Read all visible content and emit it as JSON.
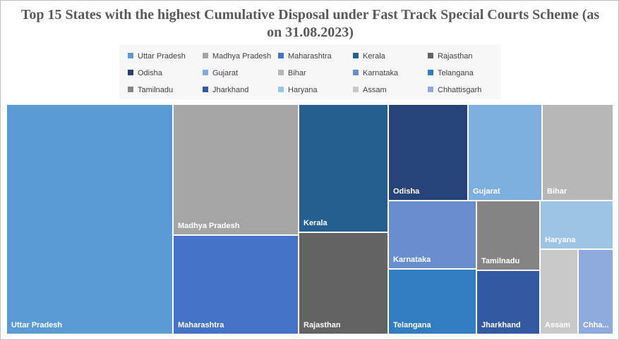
{
  "chart_data": {
    "type": "treemap",
    "title": "Top 15 States with the highest Cumulative Disposal under Fast Track Special Courts Scheme (as on 31.08.2023)",
    "legend_placement": "top",
    "series": [
      {
        "name": "Uttar Pradesh",
        "label": "Uttar Pradesh",
        "color": "#5b9bd5",
        "share": 0.273
      },
      {
        "name": "Madhya Pradesh",
        "label": "Madhya Pradesh",
        "color": "#a5a5a5",
        "share": 0.105
      },
      {
        "name": "Maharashtra",
        "label": "Maharashtra",
        "color": "#4472c4",
        "share": 0.098
      },
      {
        "name": "Kerala",
        "label": "Kerala",
        "color": "#255e91",
        "share": 0.082
      },
      {
        "name": "Rajasthan",
        "label": "Rajasthan",
        "color": "#636363",
        "share": 0.068
      },
      {
        "name": "Odisha",
        "label": "Odisha",
        "color": "#264478",
        "share": 0.054
      },
      {
        "name": "Gujarat",
        "label": "Gujarat",
        "color": "#7cafdd",
        "share": 0.052
      },
      {
        "name": "Bihar",
        "label": "Bihar",
        "color": "#b7b7b7",
        "share": 0.046
      },
      {
        "name": "Karnataka",
        "label": "Karnataka",
        "color": "#698ed0",
        "share": 0.04
      },
      {
        "name": "Telangana",
        "label": "Telangana",
        "color": "#327dc2",
        "share": 0.04
      },
      {
        "name": "Tamilnadu",
        "label": "Tamilnadu",
        "color": "#848484",
        "share": 0.029
      },
      {
        "name": "Jharkhand",
        "label": "Jharkhand",
        "color": "#335aa1",
        "share": 0.025
      },
      {
        "name": "Haryana",
        "label": "Haryana",
        "color": "#9dc3e6",
        "share": 0.027
      },
      {
        "name": "Assam",
        "label": "Assam",
        "color": "#c9c9c9",
        "share": 0.02
      },
      {
        "name": "Chhattisgarh",
        "label": "Chha...",
        "color": "#8faadc",
        "share": 0.018
      }
    ]
  }
}
